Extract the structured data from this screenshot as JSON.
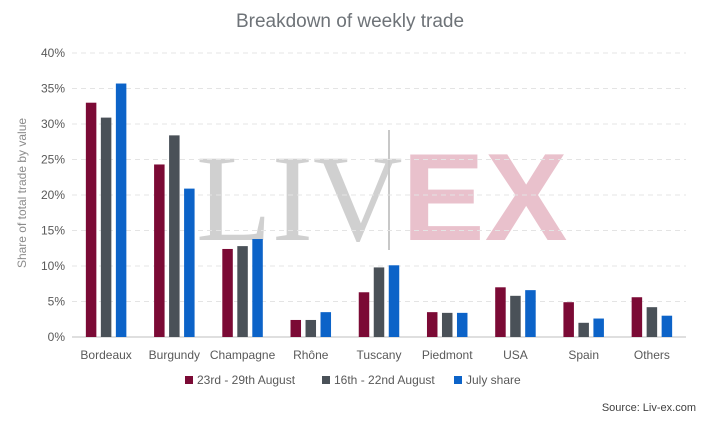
{
  "chart_data": {
    "type": "bar",
    "title": "Breakdown of weekly trade",
    "xlabel": "",
    "ylabel": "Share of total trade by value",
    "ylim": [
      0,
      40
    ],
    "yticks": [
      "0%",
      "5%",
      "10%",
      "15%",
      "20%",
      "25%",
      "30%",
      "35%",
      "40%"
    ],
    "grid": true,
    "legend_position": "bottom",
    "categories": [
      "Bordeaux",
      "Burgundy",
      "Champagne",
      "Rhône",
      "Tuscany",
      "Piedmont",
      "USA",
      "Spain",
      "Others"
    ],
    "series": [
      {
        "name": "23rd - 29th August",
        "color": "#7b0a35",
        "values": [
          33.0,
          24.3,
          12.4,
          2.4,
          6.3,
          3.5,
          7.0,
          4.9,
          5.6
        ]
      },
      {
        "name": "16th - 22nd August",
        "color": "#4a5158",
        "values": [
          30.9,
          28.4,
          12.8,
          2.4,
          9.8,
          3.4,
          5.8,
          2.0,
          4.2
        ]
      },
      {
        "name": "July share",
        "color": "#0c63c8",
        "values": [
          35.7,
          20.9,
          13.8,
          3.5,
          10.1,
          3.4,
          6.6,
          2.6,
          3.0
        ]
      }
    ],
    "source": "Source: Liv-ex.com"
  },
  "watermark": {
    "left": "LIV",
    "right": "EX",
    "left_color": "#c8c8c8",
    "right_color": "#e3b2bf"
  }
}
